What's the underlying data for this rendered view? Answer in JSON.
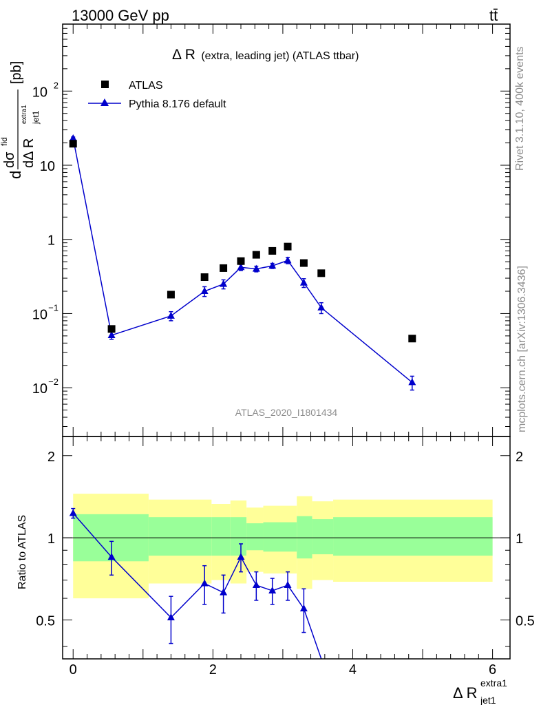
{
  "header": {
    "left": "13000 GeV pp",
    "right": "tt̄"
  },
  "side": {
    "rivet": "Rivet 3.1.10,  400k events",
    "mcplots": "mcplots.cern.ch [arXiv:1306.3436]"
  },
  "plot_title": {
    "main": "Δ R",
    "detail": "(extra, leading jet) (ATLAS ttbar)"
  },
  "watermark": "ATLAS_2020_I1801434",
  "axes": {
    "y_main": {
      "prefix": "d",
      "num": "dσ",
      "num_sup": "fid",
      "den": "dΔ R",
      "den_sub": "jet1",
      "den_sup": "extra1",
      "unit": "[pb]"
    },
    "y_ratio": "Ratio to ATLAS",
    "x": {
      "main": "Δ R",
      "sub": "jet1",
      "sup": "extra1"
    },
    "main_ticks": [
      {
        "base": "10",
        "exp": "2",
        "value": 100
      },
      {
        "base": "10",
        "exp": "",
        "value": 10
      },
      {
        "base": "1",
        "exp": "",
        "value": 1
      },
      {
        "base": "10",
        "exp": "−1",
        "value": 0.1
      },
      {
        "base": "10",
        "exp": "−2",
        "value": 0.01
      }
    ],
    "ratio_ticks": [
      {
        "label": "2",
        "value": 2
      },
      {
        "label": "1",
        "value": 1
      },
      {
        "label": "0.5",
        "value": 0.5
      }
    ],
    "x_ticks": [
      {
        "label": "0",
        "value": 0
      },
      {
        "label": "2",
        "value": 2
      },
      {
        "label": "4",
        "value": 4
      },
      {
        "label": "6",
        "value": 6
      }
    ]
  },
  "legend": {
    "atlas": "ATLAS",
    "pythia": "Pythia 8.176 default"
  },
  "chart_data": {
    "type": "scatter",
    "x_range": [
      -0.15,
      6.25
    ],
    "y_range": [
      0.0022,
      800
    ],
    "y_scale": "log",
    "ratio_range": [
      0.36,
      2.35
    ],
    "ratio_scale": "log",
    "colors": {
      "data": "#000000",
      "mc": "#0000cc",
      "band_inner": "#99ff99",
      "band_outer": "#ffff99"
    },
    "series": [
      {
        "name": "ATLAS",
        "x": [
          0.0,
          0.55,
          1.4,
          1.88,
          2.15,
          2.4,
          2.62,
          2.85,
          3.07,
          3.3,
          3.55,
          4.85
        ],
        "y": [
          19.5,
          0.062,
          0.18,
          0.31,
          0.41,
          0.51,
          0.62,
          0.7,
          0.8,
          0.48,
          0.35,
          0.046
        ]
      },
      {
        "name": "Pythia 8.176 default",
        "x": [
          0.0,
          0.55,
          1.4,
          1.88,
          2.15,
          2.4,
          2.62,
          2.85,
          3.07,
          3.3,
          3.55,
          4.85
        ],
        "y": [
          23.0,
          0.051,
          0.093,
          0.2,
          0.25,
          0.42,
          0.4,
          0.44,
          0.52,
          0.26,
          0.12,
          0.0118
        ],
        "err": [
          1.0,
          0.006,
          0.013,
          0.03,
          0.035,
          0.04,
          0.035,
          0.035,
          0.05,
          0.035,
          0.02,
          0.0025
        ]
      }
    ],
    "ratio": {
      "x": [
        0.0,
        0.55,
        1.4,
        1.88,
        2.15,
        2.4,
        2.62,
        2.85,
        3.07,
        3.3,
        3.55
      ],
      "y": [
        1.23,
        0.85,
        0.51,
        0.68,
        0.63,
        0.85,
        0.67,
        0.64,
        0.67,
        0.55,
        0.3
      ],
      "err": [
        0.05,
        0.12,
        0.1,
        0.11,
        0.1,
        0.1,
        0.08,
        0.07,
        0.08,
        0.1,
        0.05
      ]
    },
    "bands": [
      {
        "x0": 0.0,
        "x1": 1.08,
        "in_lo": 0.82,
        "in_hi": 1.22,
        "out_lo": 0.6,
        "out_hi": 1.45
      },
      {
        "x0": 1.08,
        "x1": 1.98,
        "in_lo": 0.86,
        "in_hi": 1.19,
        "out_lo": 0.68,
        "out_hi": 1.38
      },
      {
        "x0": 1.98,
        "x1": 2.25,
        "in_lo": 0.86,
        "in_hi": 1.19,
        "out_lo": 0.7,
        "out_hi": 1.33
      },
      {
        "x0": 2.25,
        "x1": 2.48,
        "in_lo": 0.86,
        "in_hi": 1.19,
        "out_lo": 0.68,
        "out_hi": 1.37
      },
      {
        "x0": 2.48,
        "x1": 2.72,
        "in_lo": 0.9,
        "in_hi": 1.13,
        "out_lo": 0.75,
        "out_hi": 1.29
      },
      {
        "x0": 2.72,
        "x1": 3.2,
        "in_lo": 0.89,
        "in_hi": 1.14,
        "out_lo": 0.74,
        "out_hi": 1.31
      },
      {
        "x0": 3.2,
        "x1": 3.42,
        "in_lo": 0.84,
        "in_hi": 1.2,
        "out_lo": 0.65,
        "out_hi": 1.42
      },
      {
        "x0": 3.42,
        "x1": 3.72,
        "in_lo": 0.87,
        "in_hi": 1.17,
        "out_lo": 0.7,
        "out_hi": 1.36
      },
      {
        "x0": 3.72,
        "x1": 6.0,
        "in_lo": 0.86,
        "in_hi": 1.19,
        "out_lo": 0.69,
        "out_hi": 1.38
      }
    ]
  }
}
